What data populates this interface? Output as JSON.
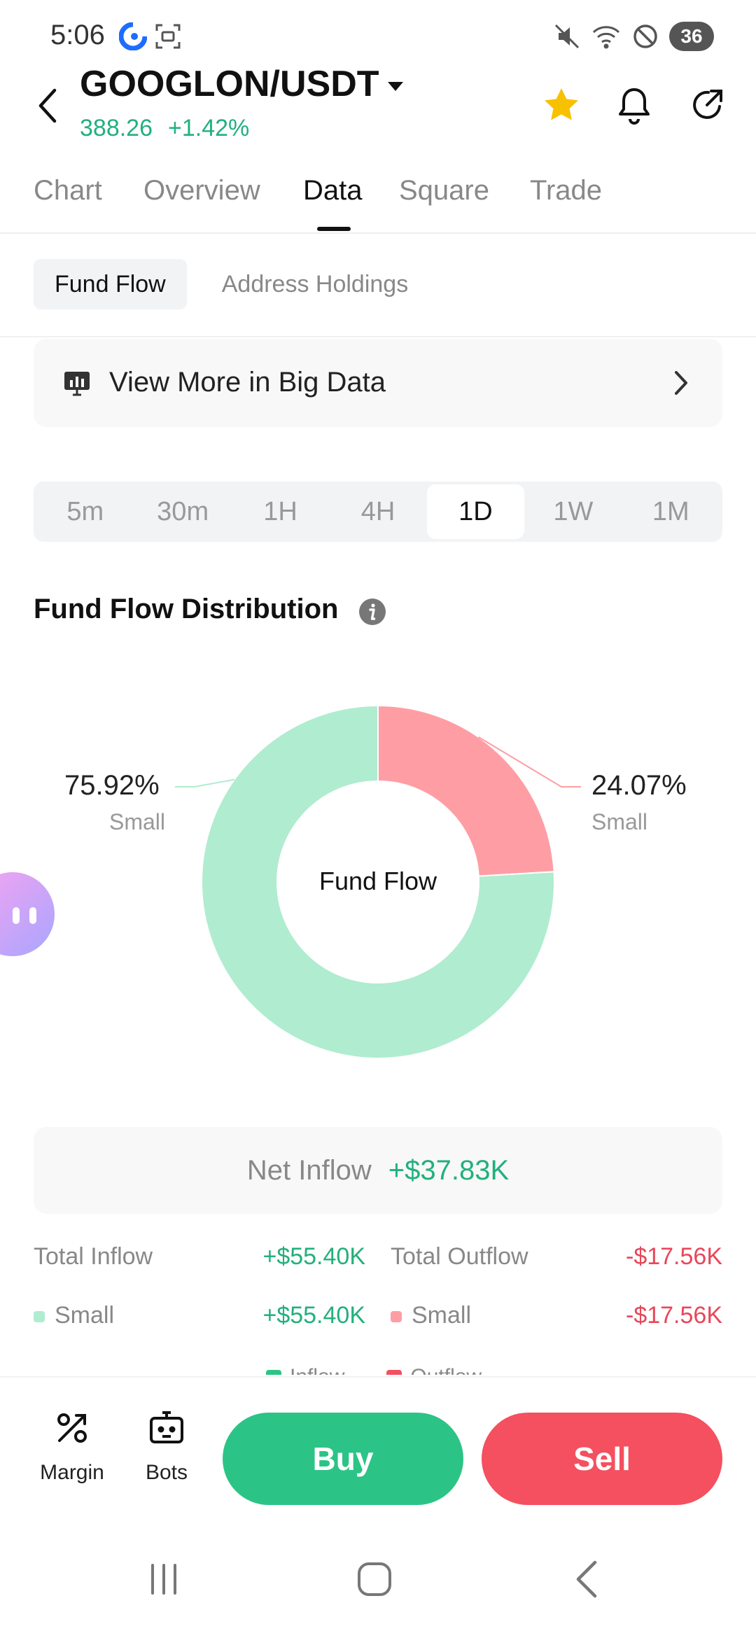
{
  "status_bar": {
    "time": "5:06",
    "battery": "36"
  },
  "header": {
    "pair": "GOOGLON/USDT",
    "price": "388.26",
    "change": "+1.42%"
  },
  "tabs": [
    {
      "label": "Chart"
    },
    {
      "label": "Overview"
    },
    {
      "label": "Data"
    },
    {
      "label": "Square"
    },
    {
      "label": "Trade"
    }
  ],
  "subtabs": [
    {
      "label": "Fund Flow"
    },
    {
      "label": "Address Holdings"
    }
  ],
  "big_data": {
    "label": "View More in Big Data"
  },
  "timeframes": [
    "5m",
    "30m",
    "1H",
    "4H",
    "1D",
    "1W",
    "1M"
  ],
  "selected_timeframe": "1D",
  "section": {
    "title": "Fund Flow Distribution"
  },
  "chart_data": {
    "type": "pie",
    "center_label": "Fund Flow",
    "slices": [
      {
        "label": "Small",
        "kind": "Inflow",
        "percent": 75.92,
        "percent_label": "75.92%",
        "color": "#b0ecd0"
      },
      {
        "label": "Small",
        "kind": "Outflow",
        "percent": 24.07,
        "percent_label": "24.07%",
        "color": "#fe9ea4"
      }
    ]
  },
  "net_inflow": {
    "label": "Net Inflow",
    "value": "+$37.83K"
  },
  "totals": {
    "inflow_label": "Total Inflow",
    "inflow_value": "+$55.40K",
    "outflow_label": "Total Outflow",
    "outflow_value": "-$17.56K",
    "inflow_small_label": "Small",
    "inflow_small_value": "+$55.40K",
    "outflow_small_label": "Small",
    "outflow_small_value": "-$17.56K"
  },
  "legend": {
    "inflow": "Inflow",
    "outflow": "Outflow"
  },
  "bottom_bar": {
    "margin": "Margin",
    "bots": "Bots",
    "buy": "Buy",
    "sell": "Sell"
  },
  "colors": {
    "up": "#22b07d",
    "down": "#e8475a",
    "buy": "#2cc486",
    "sell": "#f4505f",
    "star": "#f8c100"
  },
  "icons": [
    "back-arrow-icon",
    "caret-down-icon",
    "star-icon",
    "bell-icon",
    "share-icon",
    "bar-chart-icon",
    "chevron-right-icon",
    "info-icon",
    "margin-icon",
    "bot-icon"
  ]
}
